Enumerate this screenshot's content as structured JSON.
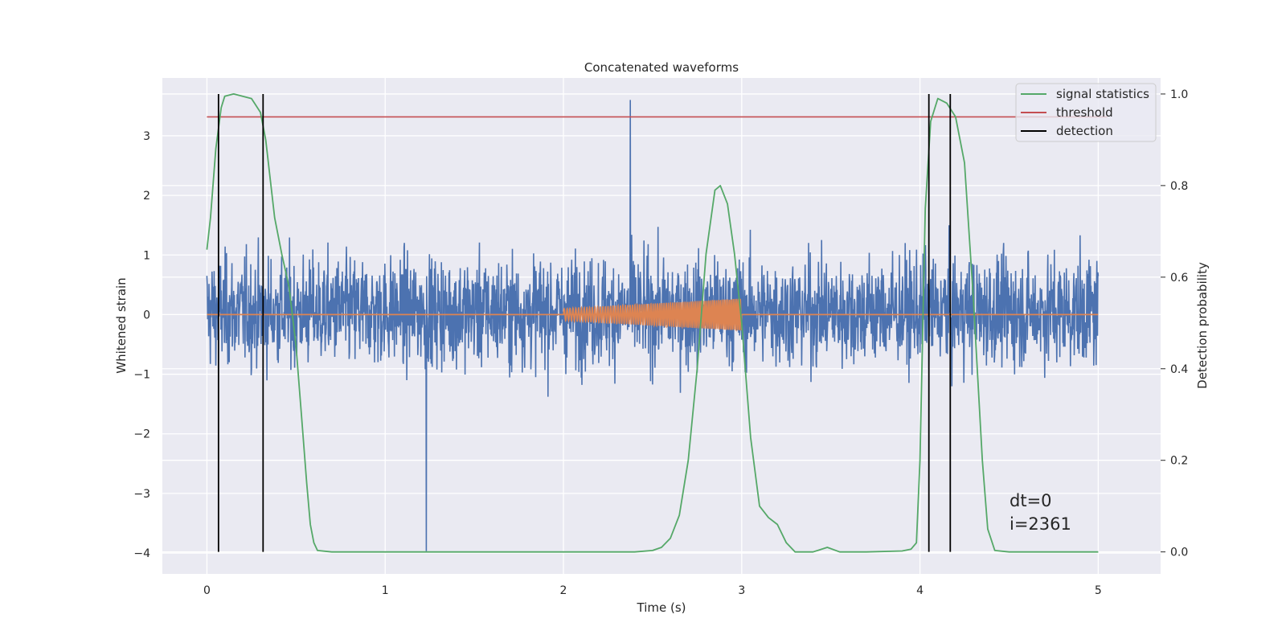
{
  "chart_data": {
    "type": "line",
    "title": "Concatenated waveforms",
    "xlabel": "Time (s)",
    "ylabel": "Whitened strain",
    "ylabel_right": "Detection probability",
    "xlim": [
      -0.25,
      5.35
    ],
    "ylim": [
      -4.35,
      3.97
    ],
    "ylim_right": [
      -0.048,
      1.035
    ],
    "x_ticks": [
      0,
      1,
      2,
      3,
      4,
      5
    ],
    "y_ticks": [
      -4,
      -3,
      -2,
      -1,
      0,
      1,
      2,
      3
    ],
    "y_right_ticks": [
      0.0,
      0.2,
      0.4,
      0.6,
      0.8,
      1.0
    ],
    "x_tick_labels": [
      "0",
      "1",
      "2",
      "3",
      "4",
      "5"
    ],
    "y_tick_labels": [
      "−4",
      "−3",
      "−2",
      "−1",
      "0",
      "1",
      "2",
      "3"
    ],
    "y_right_tick_labels": [
      "0.0",
      "0.2",
      "0.4",
      "0.6",
      "0.8",
      "1.0"
    ],
    "grid": true,
    "legend_position": "top-right",
    "legend": [
      {
        "label": "signal statistics",
        "color": "#55a868"
      },
      {
        "label": "threshold",
        "color": "#c44e52"
      },
      {
        "label": "detection",
        "color": "#000000"
      }
    ],
    "series": [
      {
        "role": "whitened noise",
        "color": "#4c72b0",
        "x_range": [
          0,
          5
        ],
        "envelope": [
          -1.6,
          1.3
        ],
        "max": 3.6,
        "min": -3.97
      },
      {
        "role": "injected chirp",
        "color": "#dd8452",
        "x_range": [
          0,
          5
        ],
        "chirp_x_range": [
          2.0,
          3.0
        ],
        "amplitude": [
          0.1,
          0.27
        ]
      },
      {
        "name": "signal statistics",
        "axis": "right",
        "color": "#55a868",
        "x": [
          0,
          0.02,
          0.05,
          0.08,
          0.1,
          0.15,
          0.25,
          0.3,
          0.33,
          0.38,
          0.42,
          0.46,
          0.5,
          0.53,
          0.56,
          0.58,
          0.6,
          0.62,
          0.7,
          1.0,
          1.5,
          2.0,
          2.4,
          2.5,
          2.55,
          2.6,
          2.65,
          2.7,
          2.75,
          2.8,
          2.85,
          2.88,
          2.92,
          2.96,
          3.0,
          3.05,
          3.1,
          3.15,
          3.2,
          3.25,
          3.3,
          3.4,
          3.48,
          3.55,
          3.7,
          3.9,
          3.95,
          3.98,
          4.0,
          4.03,
          4.06,
          4.1,
          4.15,
          4.2,
          4.25,
          4.3,
          4.35,
          4.38,
          4.42,
          4.5,
          5.0
        ],
        "y": [
          0.66,
          0.73,
          0.88,
          0.97,
          0.995,
          1.0,
          0.99,
          0.96,
          0.9,
          0.73,
          0.65,
          0.58,
          0.45,
          0.3,
          0.15,
          0.06,
          0.02,
          0.003,
          0.0,
          0.0,
          0.0,
          0.0,
          0.0,
          0.003,
          0.01,
          0.03,
          0.08,
          0.2,
          0.4,
          0.65,
          0.79,
          0.8,
          0.76,
          0.65,
          0.5,
          0.25,
          0.1,
          0.075,
          0.06,
          0.02,
          0.0,
          0.0,
          0.01,
          0.0,
          0.0,
          0.002,
          0.006,
          0.02,
          0.2,
          0.75,
          0.94,
          0.99,
          0.98,
          0.95,
          0.85,
          0.55,
          0.2,
          0.05,
          0.003,
          0.0,
          0.0
        ]
      },
      {
        "name": "threshold",
        "axis": "right",
        "color": "#c44e52",
        "x": [
          0,
          5.05
        ],
        "y": [
          0.95,
          0.95
        ]
      },
      {
        "name": "detection",
        "axis": "right",
        "color": "#000000",
        "x": [
          0.065,
          0.315,
          4.05,
          4.17
        ],
        "y_range": [
          0,
          1
        ]
      }
    ],
    "annotations": [
      "dt=0",
      "i=2361"
    ]
  }
}
